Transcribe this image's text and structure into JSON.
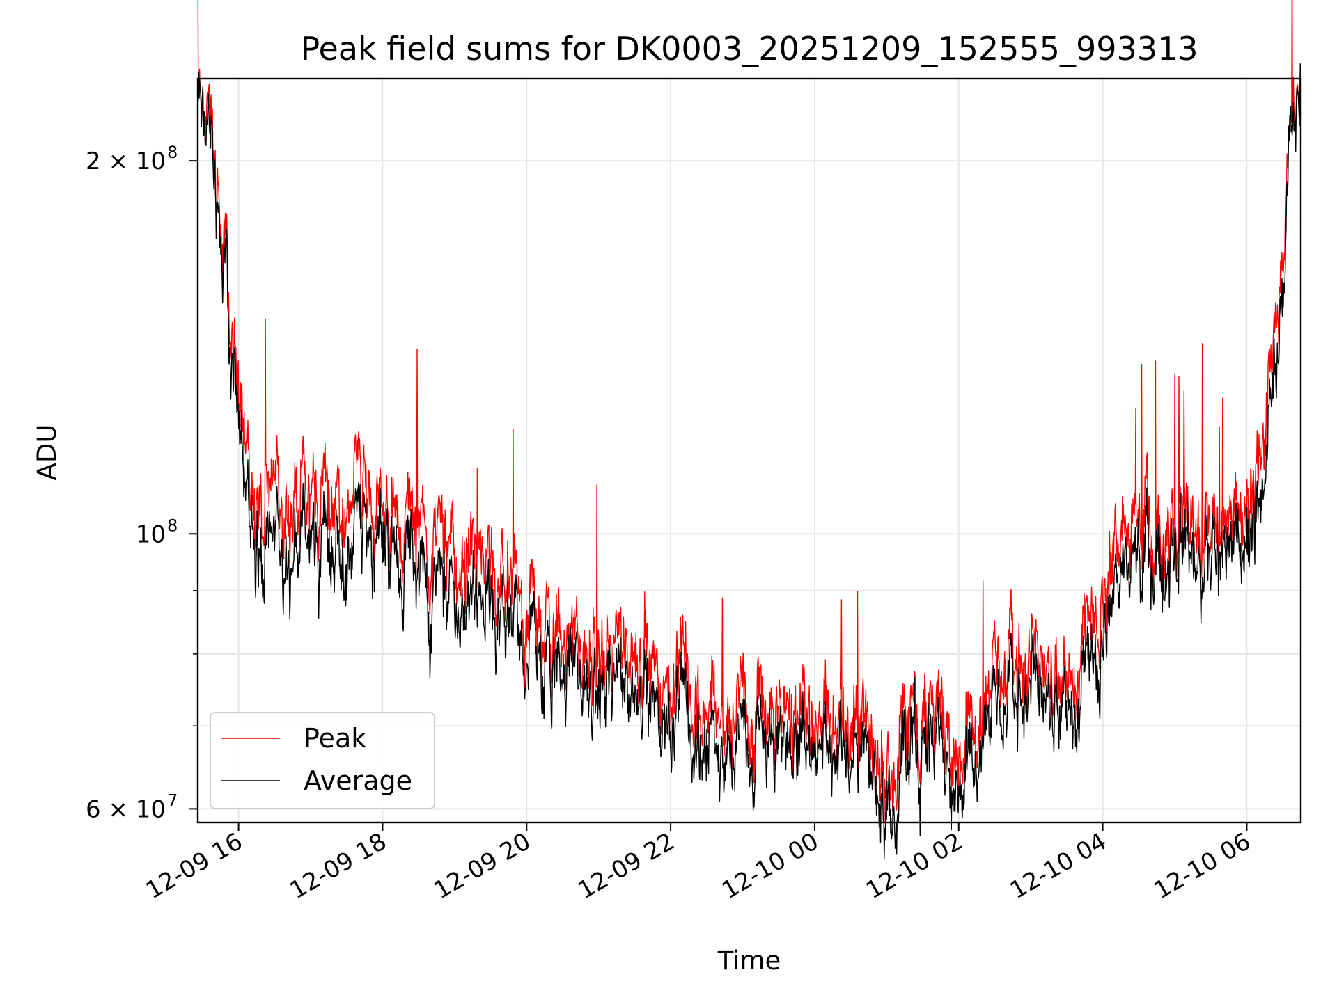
{
  "chart_data": {
    "type": "line",
    "title": "Peak field sums for DK0003_20251209_152555_993313",
    "xlabel": "Time",
    "ylabel": "ADU",
    "yscale": "log",
    "grid": true,
    "legend_position": "bottom-left",
    "xlim": [
      "2025-12-09 15:26",
      "2025-12-10 06:45"
    ],
    "ylim": [
      58500000,
      233000000
    ],
    "x_ticks": [
      {
        "value": "2025-12-09 16:00",
        "label": "12-09 16"
      },
      {
        "value": "2025-12-09 18:00",
        "label": "12-09 18"
      },
      {
        "value": "2025-12-09 20:00",
        "label": "12-09 20"
      },
      {
        "value": "2025-12-09 22:00",
        "label": "12-09 22"
      },
      {
        "value": "2025-12-10 00:00",
        "label": "12-10 00"
      },
      {
        "value": "2025-12-10 02:00",
        "label": "12-10 02"
      },
      {
        "value": "2025-12-10 04:00",
        "label": "12-10 04"
      },
      {
        "value": "2025-12-10 06:00",
        "label": "12-10 06"
      }
    ],
    "y_ticks_major": [
      {
        "value": 60000000,
        "label": "6 × 10",
        "exp": "7"
      },
      {
        "value": 100000000,
        "label": "10",
        "exp": "8"
      },
      {
        "value": 200000000,
        "label": "2 × 10",
        "exp": "8"
      }
    ],
    "y_ticks_minor": [
      70000000,
      80000000,
      90000000
    ],
    "x": [
      "2025-12-09 15:26",
      "2025-12-09 15:35",
      "2025-12-09 15:45",
      "2025-12-09 15:55",
      "2025-12-09 16:10",
      "2025-12-09 16:20",
      "2025-12-09 16:40",
      "2025-12-09 17:00",
      "2025-12-09 17:20",
      "2025-12-09 17:40",
      "2025-12-09 18:00",
      "2025-12-09 18:20",
      "2025-12-09 18:40",
      "2025-12-09 19:00",
      "2025-12-09 19:20",
      "2025-12-09 19:40",
      "2025-12-09 20:00",
      "2025-12-09 20:20",
      "2025-12-09 20:40",
      "2025-12-09 21:00",
      "2025-12-09 21:20",
      "2025-12-09 21:40",
      "2025-12-09 22:00",
      "2025-12-09 22:20",
      "2025-12-09 22:40",
      "2025-12-09 23:00",
      "2025-12-09 23:20",
      "2025-12-09 23:40",
      "2025-12-10 00:00",
      "2025-12-10 00:20",
      "2025-12-10 00:40",
      "2025-12-10 01:00",
      "2025-12-10 01:20",
      "2025-12-10 01:40",
      "2025-12-10 02:00",
      "2025-12-10 02:20",
      "2025-12-10 02:40",
      "2025-12-10 03:00",
      "2025-12-10 03:20",
      "2025-12-10 03:40",
      "2025-12-10 04:00",
      "2025-12-10 04:20",
      "2025-12-10 04:40",
      "2025-12-10 05:00",
      "2025-12-10 05:20",
      "2025-12-10 05:40",
      "2025-12-10 06:00",
      "2025-12-10 06:10",
      "2025-12-10 06:25",
      "2025-12-10 06:35",
      "2025-12-10 06:45"
    ],
    "series": [
      {
        "name": "Peak",
        "color": "#ff0000",
        "values": [
          225000000,
          215000000,
          180000000,
          140000000,
          118000000,
          105000000,
          106000000,
          108000000,
          107000000,
          108000000,
          104000000,
          104000000,
          98000000,
          96000000,
          94000000,
          90000000,
          86000000,
          81000000,
          80000000,
          79000000,
          79000000,
          78000000,
          76000000,
          74000000,
          72000000,
          71000000,
          72000000,
          72000000,
          72000000,
          71000000,
          70000000,
          65000000,
          72000000,
          73000000,
          68000000,
          73000000,
          78000000,
          79000000,
          76000000,
          76000000,
          90000000,
          98000000,
          102000000,
          101000000,
          102000000,
          103000000,
          104000000,
          112000000,
          150000000,
          210000000,
          232000000
        ]
      },
      {
        "name": "Average",
        "color": "#000000",
        "values": [
          222000000,
          210000000,
          176000000,
          134000000,
          110000000,
          96000000,
          97000000,
          99000000,
          98000000,
          99000000,
          99000000,
          96000000,
          90000000,
          88000000,
          87000000,
          84000000,
          80000000,
          76000000,
          76000000,
          74000000,
          74000000,
          73000000,
          71000000,
          69000000,
          67000000,
          67000000,
          68000000,
          68000000,
          68000000,
          68000000,
          66000000,
          61000000,
          68000000,
          69000000,
          64000000,
          69000000,
          73000000,
          75000000,
          72000000,
          71000000,
          84000000,
          92000000,
          96000000,
          96000000,
          97000000,
          98000000,
          98000000,
          103000000,
          140000000,
          205000000,
          232000000
        ]
      }
    ]
  }
}
